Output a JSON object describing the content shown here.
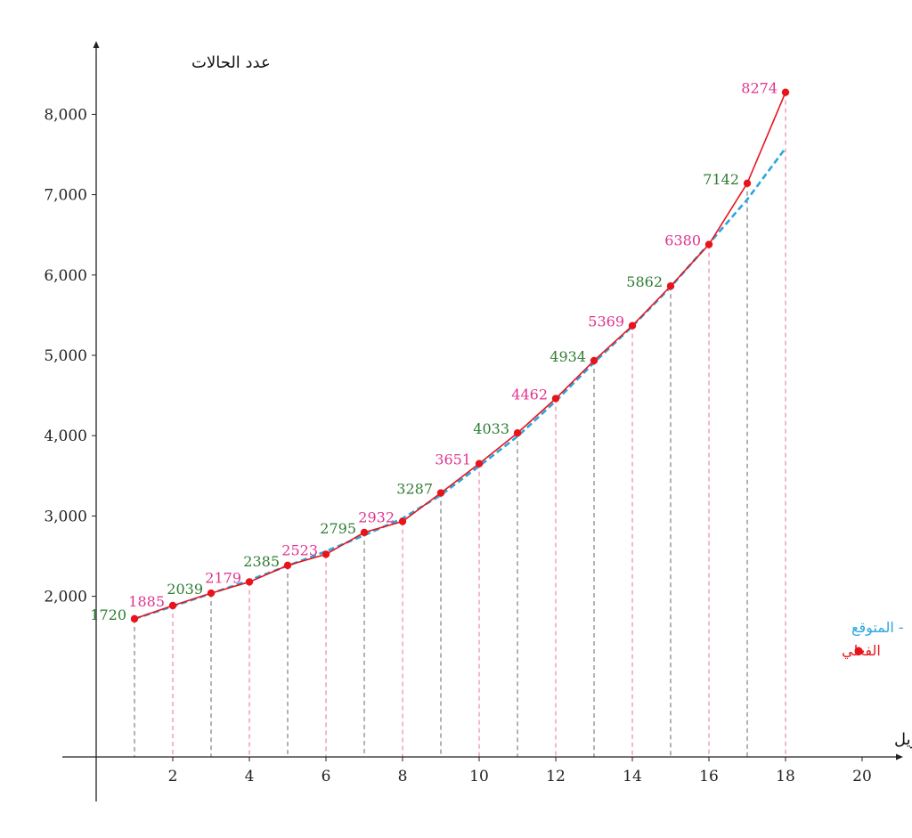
{
  "chart_data": {
    "type": "line",
    "ylabel": "عدد الحالات",
    "xlabel": "إبريل",
    "xlim": [
      0,
      20
    ],
    "ylim": [
      0,
      8700
    ],
    "x_ticks": [
      2,
      4,
      6,
      8,
      10,
      12,
      14,
      16,
      18,
      20
    ],
    "y_ticks": [
      2000,
      3000,
      4000,
      5000,
      6000,
      7000,
      8000
    ],
    "y_tick_labels": [
      "2,000",
      "3,000",
      "4,000",
      "5,000",
      "6,000",
      "7,000",
      "8,000"
    ],
    "x": [
      1,
      2,
      3,
      4,
      5,
      6,
      7,
      8,
      9,
      10,
      11,
      12,
      13,
      14,
      15,
      16,
      17,
      18
    ],
    "data_labels": [
      "1720",
      "1885",
      "2039",
      "2179",
      "2385",
      "2523",
      "2795",
      "2932",
      "3287",
      "3651",
      "4033",
      "4462",
      "4934",
      "5369",
      "5862",
      "6380",
      "7142",
      "8274"
    ],
    "series": [
      {
        "name": "الفعلي",
        "values": [
          1720,
          1885,
          2039,
          2179,
          2385,
          2523,
          2795,
          2932,
          3287,
          3651,
          4033,
          4462,
          4934,
          5369,
          5862,
          6380,
          7142,
          8274
        ]
      },
      {
        "name": "المتوقع",
        "values": [
          1720,
          1875,
          2035,
          2200,
          2380,
          2560,
          2760,
          2970,
          3260,
          3620,
          3990,
          4430,
          4910,
          5360,
          5850,
          6390,
          6940,
          7580
        ]
      }
    ],
    "legend_position": "right",
    "colors": {
      "actual": "#e8141c",
      "forecast": "#2aa6e0",
      "label_odd": "#2e7d32",
      "label_even": "#e0338f",
      "drop_odd": "#555555",
      "drop_even": "#e8608f",
      "axis": "#222222"
    },
    "legend": {
      "forecast_text": "- المتوقع",
      "actual_text": "الفعلي"
    }
  }
}
